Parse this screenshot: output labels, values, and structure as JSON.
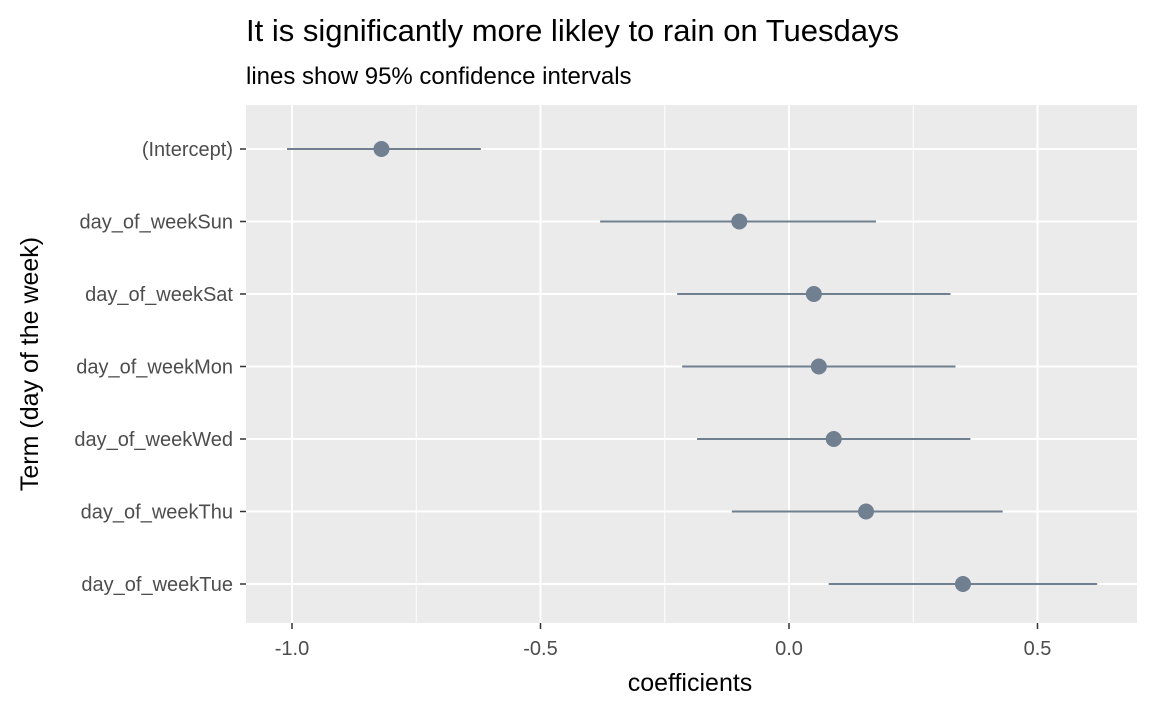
{
  "chart_data": {
    "type": "pointrange",
    "title": "It is significantly more likley to rain on Tuesdays",
    "subtitle": "lines show 95% confidence intervals",
    "xlabel": "coefficients",
    "ylabel": "Term (day of the week)",
    "xlim": [
      -1.09,
      0.7
    ],
    "x_ticks": [
      -1.0,
      -0.5,
      0.0,
      0.5
    ],
    "x_tick_labels": [
      "-1.0",
      "-0.5",
      "0.0",
      "0.5"
    ],
    "x_minor_ticks": [
      -0.75,
      -0.25,
      0.25
    ],
    "grid": true,
    "background": "#EBEBEB",
    "point_color": "#708090",
    "terms": [
      {
        "label": "(Intercept)",
        "estimate": -0.82,
        "lower": -1.01,
        "upper": -0.62
      },
      {
        "label": "day_of_weekSun",
        "estimate": -0.1,
        "lower": -0.38,
        "upper": 0.175
      },
      {
        "label": "day_of_weekSat",
        "estimate": 0.05,
        "lower": -0.225,
        "upper": 0.325
      },
      {
        "label": "day_of_weekMon",
        "estimate": 0.06,
        "lower": -0.215,
        "upper": 0.335
      },
      {
        "label": "day_of_weekWed",
        "estimate": 0.09,
        "lower": -0.185,
        "upper": 0.365
      },
      {
        "label": "day_of_weekThu",
        "estimate": 0.155,
        "lower": -0.115,
        "upper": 0.43
      },
      {
        "label": "day_of_weekTue",
        "estimate": 0.35,
        "lower": 0.08,
        "upper": 0.62
      }
    ]
  }
}
